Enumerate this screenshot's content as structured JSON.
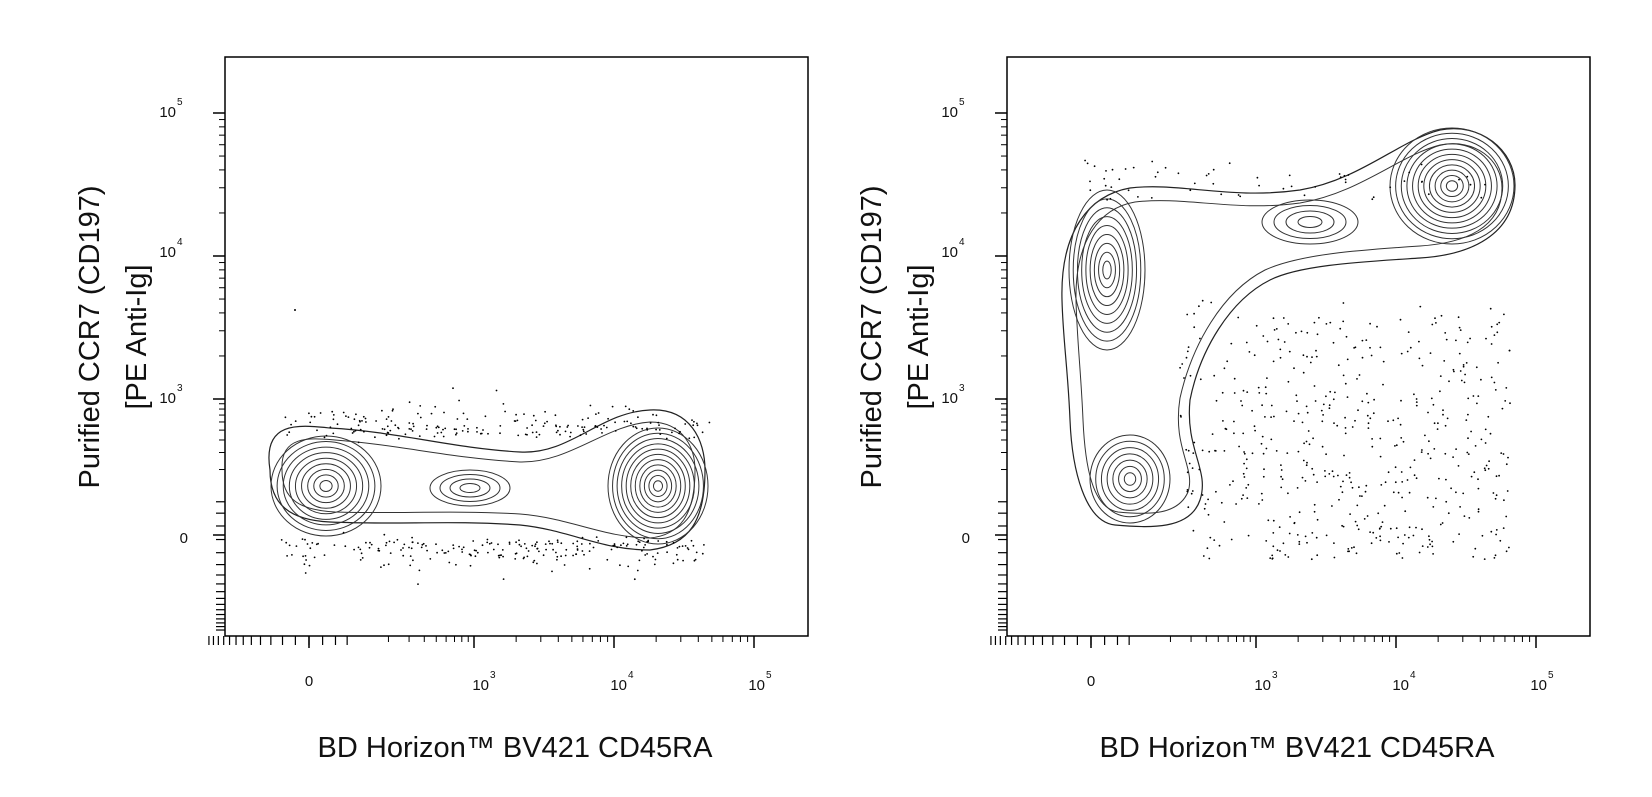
{
  "chart_data": [
    {
      "type": "scatter",
      "subtype": "flow cytometry contour plot (biexponential axes)",
      "xlabel": "BD Horizon™ BV421 CD45RA",
      "ylabel_line1": "Purified  CCR7 (CD197)",
      "ylabel_line2": "[PE  Anti-Ig]",
      "x_scale": "biexponential (log above ~10^2)",
      "y_scale": "biexponential (log above ~10^2)",
      "x_tick_labels": [
        {
          "base": "0",
          "exp": "",
          "value": 0
        },
        {
          "base": "10",
          "exp": "3",
          "value": 1000
        },
        {
          "base": "10",
          "exp": "4",
          "value": 10000
        },
        {
          "base": "10",
          "exp": "5",
          "value": 100000
        }
      ],
      "y_tick_labels": [
        {
          "base": "0",
          "exp": "",
          "value": 0
        },
        {
          "base": "10",
          "exp": "3",
          "value": 1000
        },
        {
          "base": "10",
          "exp": "4",
          "value": 10000
        },
        {
          "base": "10",
          "exp": "5",
          "value": 100000
        }
      ],
      "populations": [
        {
          "x": 45,
          "y": 190,
          "density": 1.0
        },
        {
          "x": 950,
          "y": 200,
          "density": 0.45
        },
        {
          "x": 18000,
          "y": 200,
          "density": 1.0
        }
      ],
      "grid": false,
      "legend": "none"
    },
    {
      "type": "scatter",
      "subtype": "flow cytometry contour plot (biexponential axes)",
      "xlabel": "BD Horizon™ BV421 CD45RA",
      "ylabel_line1": "Purified  CCR7 (CD197)",
      "ylabel_line2": "[PE  Anti-Ig]",
      "x_scale": "biexponential (log above ~10^2)",
      "y_scale": "biexponential (log above ~10^2)",
      "x_tick_labels": [
        {
          "base": "0",
          "exp": "",
          "value": 0
        },
        {
          "base": "10",
          "exp": "3",
          "value": 1000
        },
        {
          "base": "10",
          "exp": "4",
          "value": 10000
        },
        {
          "base": "10",
          "exp": "5",
          "value": 100000
        }
      ],
      "y_tick_labels": [
        {
          "base": "0",
          "exp": "",
          "value": 0
        },
        {
          "base": "10",
          "exp": "3",
          "value": 1000
        },
        {
          "base": "10",
          "exp": "4",
          "value": 10000
        },
        {
          "base": "10",
          "exp": "5",
          "value": 100000
        }
      ],
      "populations": [
        {
          "x": 90,
          "y": 9000,
          "density": 1.0
        },
        {
          "x": 90,
          "y": 280,
          "density": 0.9
        },
        {
          "x": 17000,
          "y": 28000,
          "density": 1.0
        },
        {
          "x": 2500,
          "y": 15000,
          "density": 0.45
        }
      ],
      "scattered_events_region": {
        "x": [
          300,
          20000
        ],
        "y": [
          -50,
          3000
        ]
      },
      "grid": false,
      "legend": "none"
    }
  ]
}
